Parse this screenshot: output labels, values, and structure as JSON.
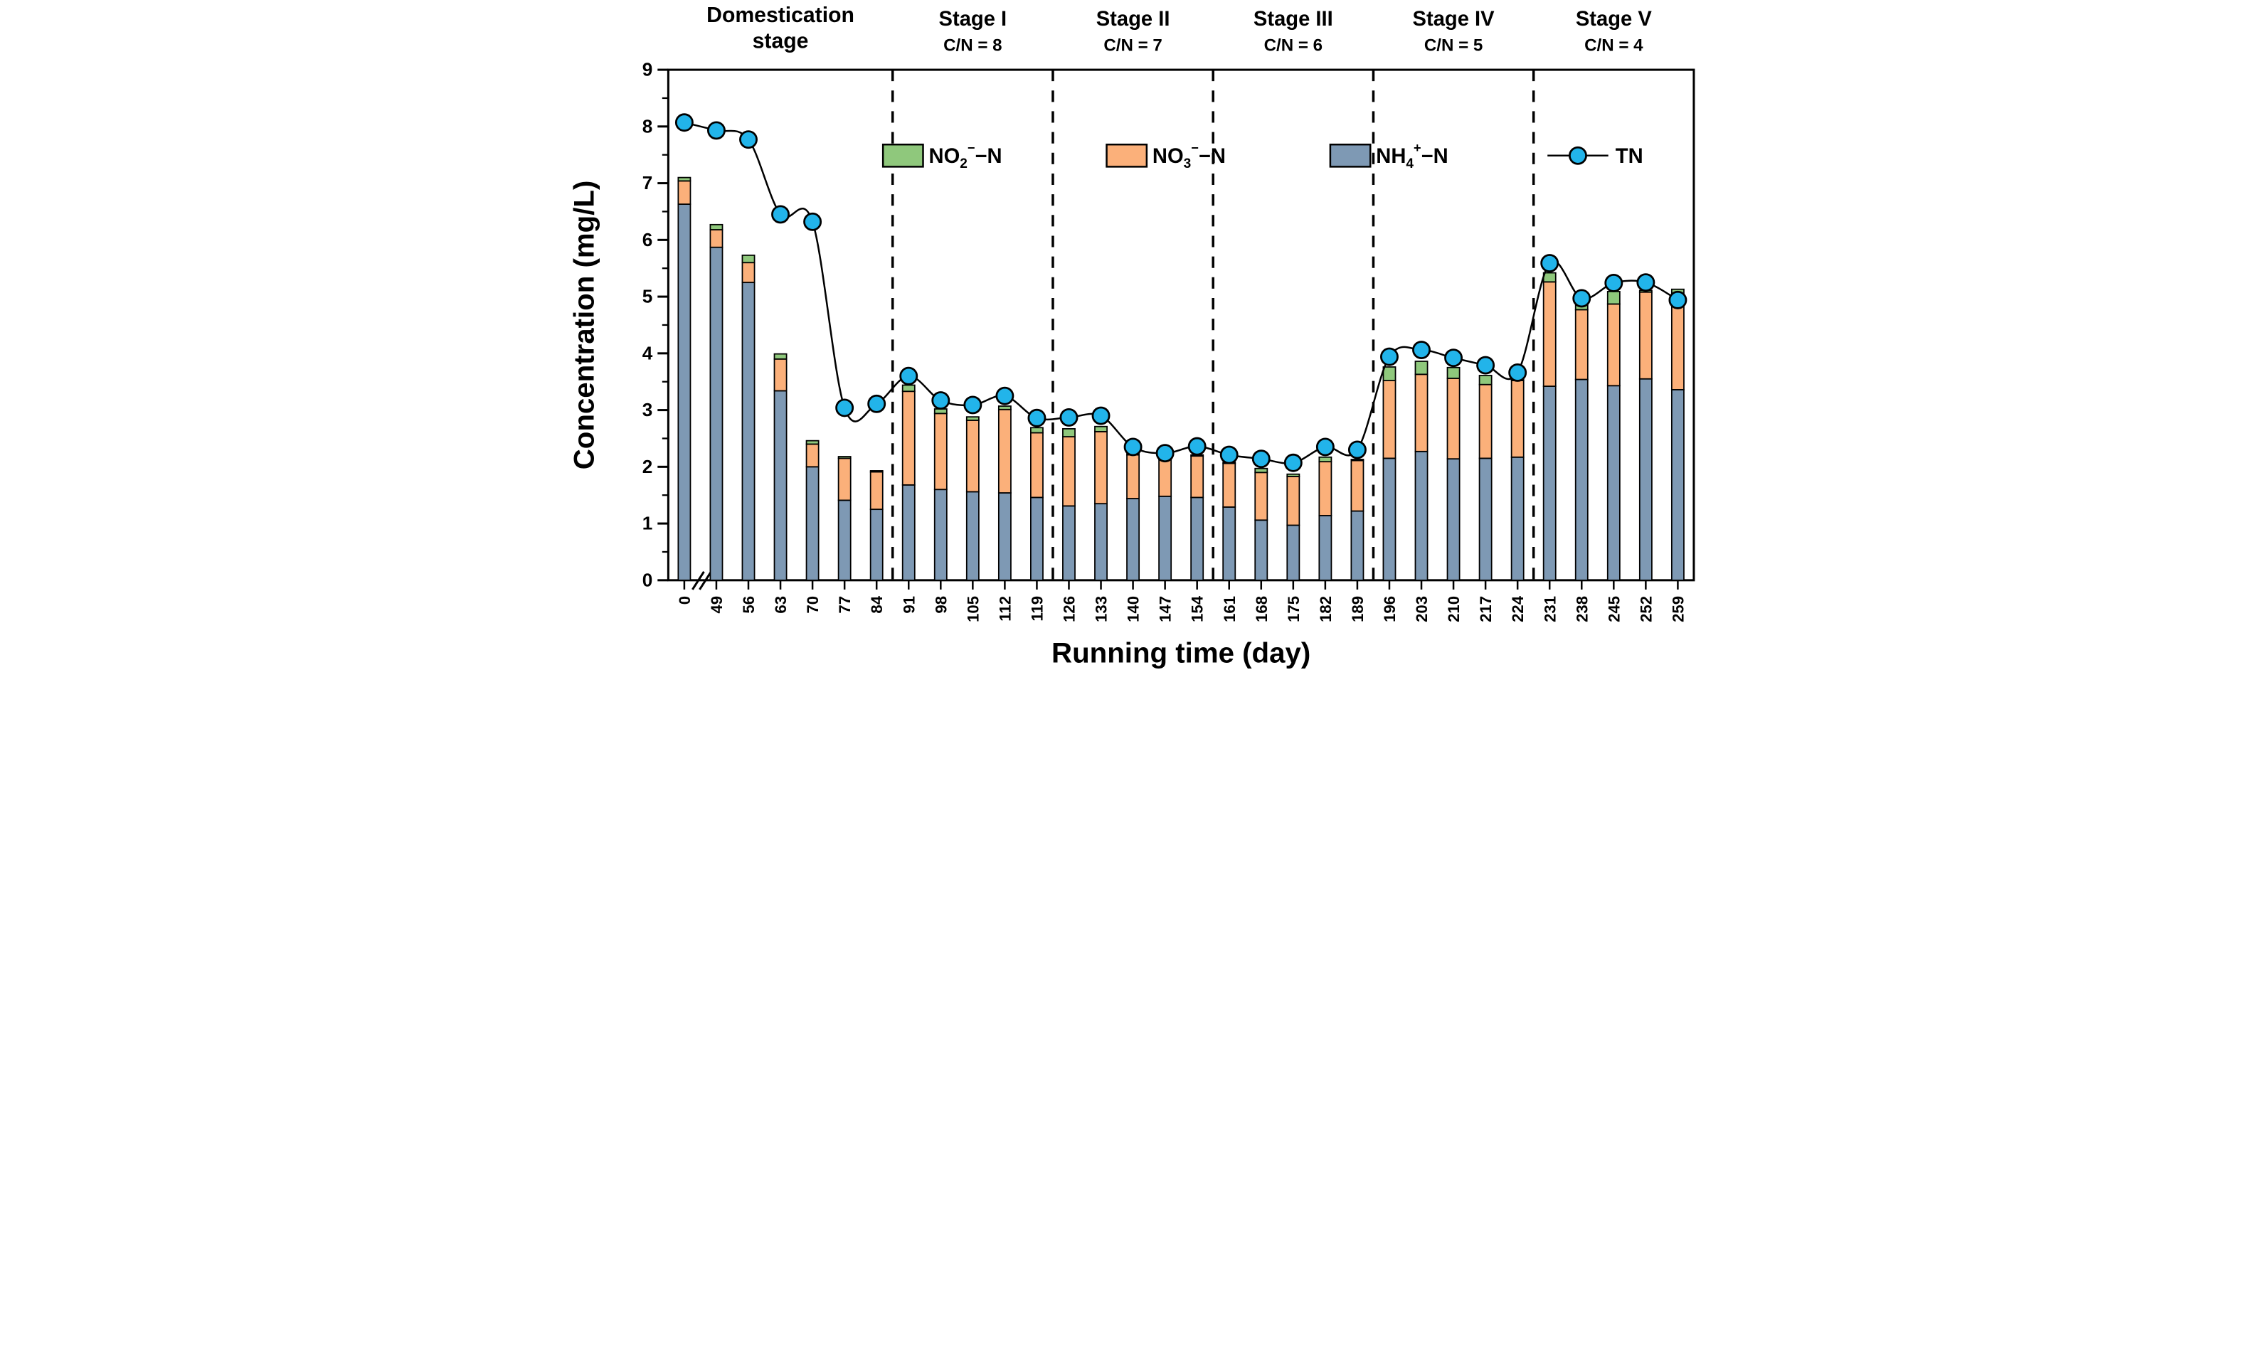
{
  "figure": {
    "background": "#FFFFFF"
  },
  "y_axis": {
    "label": "Concentration (mg/L)",
    "min": 0,
    "max": 9,
    "major_step": 1,
    "minor_step": 0.5,
    "tick_labels": [
      "0",
      "1",
      "2",
      "3",
      "4",
      "5",
      "6",
      "7",
      "8",
      "9"
    ]
  },
  "x_axis": {
    "label": "Running time (day)",
    "has_break_after_first": true,
    "tick_rotation": -90
  },
  "stages": [
    {
      "name": "Domestication",
      "name_line2": "stage",
      "cn": null,
      "start": 0,
      "end": 6
    },
    {
      "name": "Stage I",
      "cn": "C/N = 8",
      "start": 7,
      "end": 11
    },
    {
      "name": "Stage II",
      "cn": "C/N = 7",
      "start": 12,
      "end": 16
    },
    {
      "name": "Stage III",
      "cn": "C/N = 6",
      "start": 17,
      "end": 21
    },
    {
      "name": "Stage IV",
      "cn": "C/N = 5",
      "start": 22,
      "end": 26
    },
    {
      "name": "Stage V",
      "cn": "C/N = 4",
      "start": 27,
      "end": 31
    }
  ],
  "separators_after_index": [
    6,
    11,
    16,
    21,
    26
  ],
  "legend": {
    "items": [
      {
        "name": "no2",
        "kind": "swatch",
        "base": "NO",
        "sub": "2",
        "sup": "−",
        "tail": "−N",
        "color": "#8FC87C"
      },
      {
        "name": "no3",
        "kind": "swatch",
        "base": "NO",
        "sub": "3",
        "sup": "−",
        "tail": "−N",
        "color": "#FBB07A"
      },
      {
        "name": "nh4",
        "kind": "swatch",
        "base": "NH",
        "sub": "4",
        "sup": "+",
        "tail": "−N",
        "color": "#7E99B4"
      },
      {
        "name": "tn",
        "kind": "line-marker",
        "base": "TN",
        "sub": "",
        "sup": "",
        "tail": "",
        "color": "#22B4EA"
      }
    ]
  },
  "colors": {
    "no2": "#8FC87C",
    "no3": "#FBB07A",
    "nh4": "#7E99B4",
    "tn_marker": "#22B4EA",
    "stroke": "#000000"
  },
  "chart_data": {
    "type": "bar",
    "stacked": true,
    "overlay_line": "TN",
    "title": "",
    "xlabel": "Running time (day)",
    "ylabel": "Concentration (mg/L)",
    "ylim": [
      0,
      9
    ],
    "grid": false,
    "legend_position": "top-inside",
    "categories": [
      0,
      49,
      56,
      63,
      70,
      77,
      84,
      91,
      98,
      105,
      112,
      119,
      126,
      133,
      140,
      147,
      154,
      161,
      168,
      175,
      182,
      189,
      196,
      203,
      210,
      217,
      224,
      231,
      238,
      245,
      252,
      259
    ],
    "series": [
      {
        "name": "NH4-N",
        "role": "nh4",
        "values": [
          6.63,
          5.87,
          5.25,
          3.34,
          2.0,
          1.41,
          1.25,
          1.68,
          1.6,
          1.56,
          1.54,
          1.46,
          1.31,
          1.35,
          1.44,
          1.48,
          1.46,
          1.29,
          1.06,
          0.97,
          1.14,
          1.22,
          2.15,
          2.27,
          2.14,
          2.15,
          2.17,
          3.42,
          3.54,
          3.43,
          3.55,
          3.36
        ]
      },
      {
        "name": "NO3-N",
        "role": "no3",
        "values": [
          0.41,
          0.31,
          0.35,
          0.56,
          0.4,
          0.74,
          0.66,
          1.65,
          1.34,
          1.26,
          1.47,
          1.14,
          1.22,
          1.27,
          0.77,
          0.65,
          0.73,
          0.77,
          0.84,
          0.86,
          0.95,
          0.89,
          1.37,
          1.36,
          1.42,
          1.3,
          1.35,
          1.84,
          1.23,
          1.44,
          1.53,
          1.61
        ]
      },
      {
        "name": "NO2-N",
        "role": "no2",
        "values": [
          0.06,
          0.09,
          0.13,
          0.09,
          0.06,
          0.03,
          0.02,
          0.11,
          0.08,
          0.06,
          0.06,
          0.09,
          0.14,
          0.09,
          0.02,
          0.02,
          0.02,
          0.02,
          0.07,
          0.04,
          0.08,
          0.02,
          0.24,
          0.23,
          0.19,
          0.16,
          0.03,
          0.16,
          0.11,
          0.22,
          0.03,
          0.16
        ]
      },
      {
        "name": "TN",
        "role": "tn",
        "line": true,
        "values": [
          8.07,
          7.93,
          7.77,
          6.45,
          6.32,
          3.04,
          3.11,
          3.6,
          3.17,
          3.09,
          3.25,
          2.86,
          2.87,
          2.9,
          2.35,
          2.24,
          2.36,
          2.21,
          2.14,
          2.07,
          2.35,
          2.3,
          3.94,
          4.06,
          3.92,
          3.79,
          3.66,
          5.59,
          4.97,
          5.24,
          5.25,
          4.94
        ]
      }
    ]
  }
}
